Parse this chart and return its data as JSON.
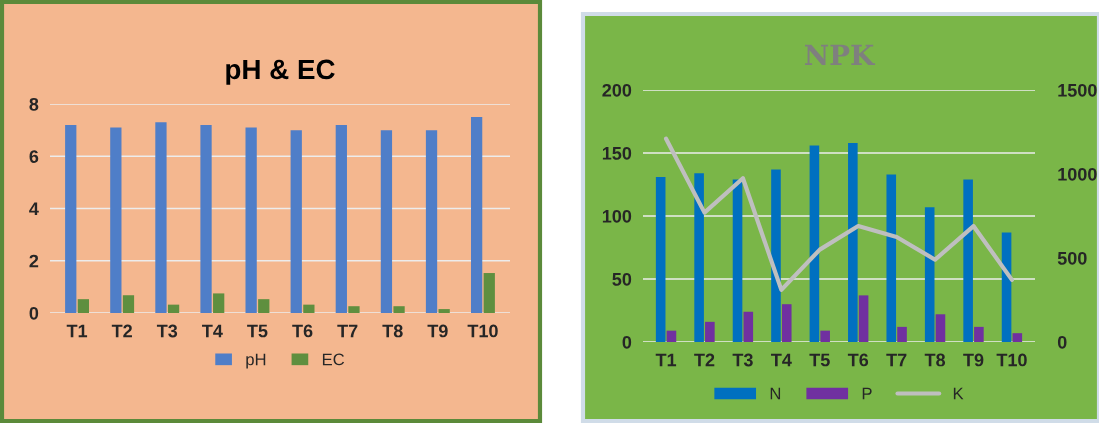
{
  "chart_data": [
    {
      "type": "bar",
      "title": "pH & EC",
      "categories": [
        "T1",
        "T2",
        "T3",
        "T4",
        "T5",
        "T6",
        "T7",
        "T8",
        "T9",
        "T10"
      ],
      "series": [
        {
          "name": "pH",
          "color": "#4f7ec8",
          "values": [
            7.2,
            7.1,
            7.3,
            7.2,
            7.1,
            7.0,
            7.2,
            7.0,
            7.0,
            7.5
          ]
        },
        {
          "name": "EC",
          "color": "#5f8f3f",
          "values": [
            0.53,
            0.68,
            0.32,
            0.75,
            0.53,
            0.32,
            0.26,
            0.26,
            0.15,
            1.53
          ]
        }
      ],
      "ylim": [
        0,
        8
      ],
      "yticks": [
        0,
        2,
        4,
        6,
        8
      ],
      "grid": "y",
      "legend": "bottom"
    },
    {
      "type": "bar",
      "title": "NPK",
      "categories": [
        "T1",
        "T2",
        "T3",
        "T4",
        "T5",
        "T6",
        "T7",
        "T8",
        "T9",
        "T10"
      ],
      "series": [
        {
          "name": "N",
          "color": "#0070c0",
          "values": [
            131,
            134,
            129,
            137,
            156,
            158,
            133,
            107,
            129,
            87
          ]
        },
        {
          "name": "P",
          "color": "#7030a0",
          "values": [
            9,
            16,
            24,
            30,
            9,
            37,
            12,
            22,
            12,
            7
          ]
        },
        {
          "name": "K",
          "color": "#bfbfbf",
          "type": "line",
          "axis": "y2",
          "values": [
            1210,
            770,
            975,
            310,
            550,
            690,
            625,
            490,
            690,
            370
          ]
        }
      ],
      "ylim": [
        0,
        200
      ],
      "yticks": [
        0,
        50,
        100,
        150,
        200
      ],
      "y2lim": [
        0,
        1500
      ],
      "y2ticks": [
        0,
        500,
        1000,
        1500
      ],
      "grid": "y",
      "legend": "bottom"
    }
  ]
}
